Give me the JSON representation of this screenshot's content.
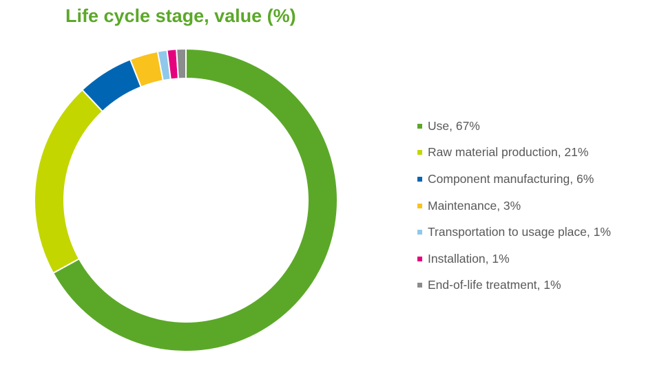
{
  "chart_data": {
    "type": "donut",
    "title": "Life cycle stage, value (%)",
    "unit": "%",
    "legend_position": "right",
    "slices": [
      {
        "label": "Use",
        "legend_text": "Use, 67%",
        "value": 67,
        "color": "#5BA829"
      },
      {
        "label": "Raw material production",
        "legend_text": "Raw material production, 21%",
        "value": 21,
        "color": "#C3D600"
      },
      {
        "label": "Component manufacturing",
        "legend_text": "Component manufacturing, 6%",
        "value": 6,
        "color": "#0066B3"
      },
      {
        "label": "Maintenance",
        "legend_text": "Maintenance, 3%",
        "value": 3,
        "color": "#F9C21D"
      },
      {
        "label": "Transportation to usage place",
        "legend_text": "Transportation to usage place, 1%",
        "value": 1,
        "color": "#8FC8EA"
      },
      {
        "label": "Installation",
        "legend_text": "Installation, 1%",
        "value": 1,
        "color": "#E5007D"
      },
      {
        "label": "End-of-life treatment",
        "legend_text": "End-of-life treatment, 1%",
        "value": 1,
        "color": "#8A8C8E"
      }
    ]
  }
}
